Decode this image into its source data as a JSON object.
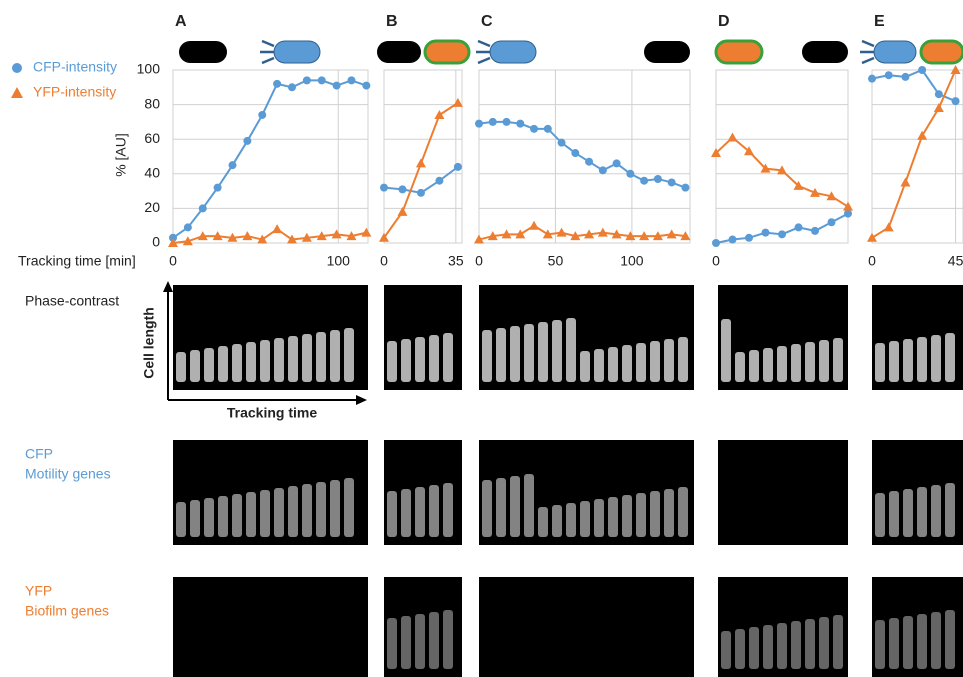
{
  "chart_data": [
    {
      "type": "line",
      "title": "A",
      "ylabel": "% [AU]",
      "xlabel": "Tracking time [min]",
      "x": [
        0,
        9,
        18,
        27,
        36,
        45,
        54,
        63,
        72,
        81,
        90,
        99,
        108,
        117
      ],
      "xlim": [
        0,
        118
      ],
      "xticks": [
        0,
        100
      ],
      "ylim": [
        0,
        100
      ],
      "yticks": [
        0,
        20,
        40,
        60,
        80,
        100
      ],
      "grid": true,
      "series": [
        {
          "name": "CFP-intensity",
          "color": "#5b9bd5",
          "marker": "circle",
          "values": [
            3,
            9,
            20,
            32,
            45,
            59,
            74,
            92,
            90,
            94,
            94,
            91,
            94,
            91
          ]
        },
        {
          "name": "YFP-intensity",
          "color": "#ed7d31",
          "marker": "triangle",
          "values": [
            0,
            1,
            4,
            4,
            3,
            4,
            2,
            8,
            2,
            3,
            4,
            5,
            4,
            6
          ]
        }
      ]
    },
    {
      "type": "line",
      "title": "B",
      "x": [
        0,
        9,
        18,
        27,
        36
      ],
      "xlim": [
        0,
        38
      ],
      "xticks": [
        0,
        35
      ],
      "series": [
        {
          "name": "CFP-intensity",
          "color": "#5b9bd5",
          "marker": "circle",
          "values": [
            32,
            31,
            29,
            36,
            44
          ]
        },
        {
          "name": "YFP-intensity",
          "color": "#ed7d31",
          "marker": "triangle",
          "values": [
            3,
            18,
            46,
            74,
            81
          ]
        }
      ]
    },
    {
      "type": "line",
      "title": "C",
      "x": [
        0,
        9,
        18,
        27,
        36,
        45,
        54,
        63,
        72,
        81,
        90,
        99,
        108,
        117,
        126,
        135
      ],
      "xlim": [
        0,
        138
      ],
      "xticks": [
        0,
        50,
        100
      ],
      "series": [
        {
          "name": "CFP-intensity",
          "color": "#5b9bd5",
          "marker": "circle",
          "values": [
            69,
            70,
            70,
            69,
            66,
            66,
            58,
            52,
            47,
            42,
            46,
            40,
            36,
            37,
            35,
            32
          ]
        },
        {
          "name": "YFP-intensity",
          "color": "#ed7d31",
          "marker": "triangle",
          "values": [
            2,
            4,
            5,
            5,
            10,
            5,
            6,
            4,
            5,
            6,
            5,
            4,
            4,
            4,
            5,
            4
          ]
        }
      ]
    },
    {
      "type": "line",
      "title": "D",
      "x": [
        0,
        9,
        18,
        27,
        36,
        45,
        54,
        63,
        72
      ],
      "xlim": [
        0,
        72
      ],
      "xticks": [
        0
      ],
      "series": [
        {
          "name": "CFP-intensity",
          "color": "#5b9bd5",
          "marker": "circle",
          "values": [
            0,
            2,
            3,
            6,
            5,
            9,
            7,
            12,
            17
          ]
        },
        {
          "name": "YFP-intensity",
          "color": "#ed7d31",
          "marker": "triangle",
          "values": [
            52,
            61,
            53,
            43,
            42,
            33,
            29,
            27,
            21
          ]
        }
      ]
    },
    {
      "type": "line",
      "title": "E",
      "x": [
        0,
        9,
        18,
        27,
        36,
        45
      ],
      "xlim": [
        0,
        49
      ],
      "xticks": [
        0,
        45
      ],
      "series": [
        {
          "name": "CFP-intensity",
          "color": "#5b9bd5",
          "marker": "circle",
          "values": [
            95,
            97,
            96,
            100,
            86,
            82
          ]
        },
        {
          "name": "YFP-intensity",
          "color": "#ed7d31",
          "marker": "triangle",
          "values": [
            3,
            9,
            35,
            62,
            78,
            100
          ]
        }
      ]
    }
  ],
  "figure_labels": {
    "phase": "Phase-contrast",
    "cell_length": "Cell length",
    "tracking_time": "Tracking time",
    "cfp": "CFP",
    "motility": "Motility genes",
    "yfp": "YFP",
    "biofilm": "Biofilm genes"
  }
}
